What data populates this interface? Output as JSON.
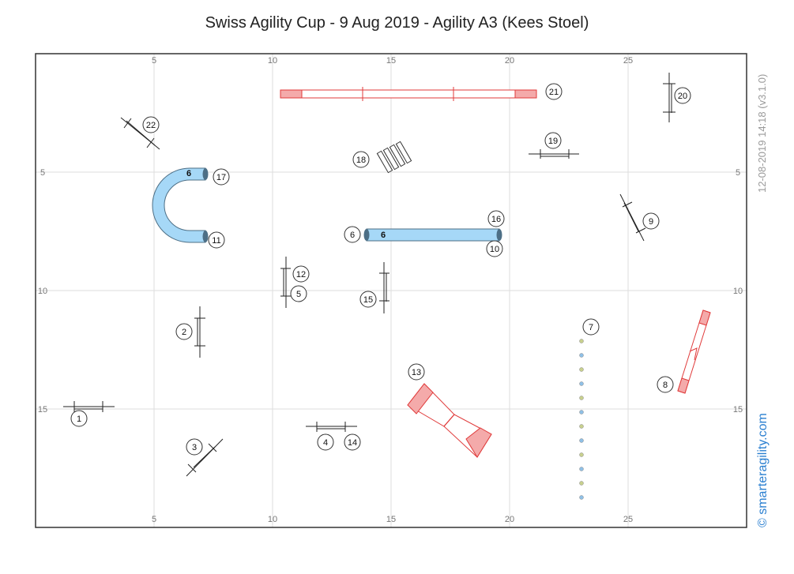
{
  "header": {
    "title": "Swiss Agility Cup - 9 Aug 2019 - Agility A3 (Kees Stoel)"
  },
  "side": {
    "timestamp": "12-08-2019 14:18  (v3.1.0)",
    "brand": "© smarteragility.com"
  },
  "colors": {
    "tunnel": "#a6d8f7",
    "tunnel_end": "#4d6f86",
    "contact": "#e03a3a",
    "contact_fill": "#f4aaaa",
    "grid": "#dddddd"
  },
  "course_map": {
    "field": {
      "x_range": [
        0,
        30
      ],
      "y_range": [
        0,
        20
      ]
    },
    "x_ticks": [
      "5",
      "10",
      "15",
      "20",
      "25"
    ],
    "y_ticks": [
      "5",
      "10",
      "15"
    ],
    "obstacles": [
      {
        "type": "jump",
        "numbers": [
          "1"
        ]
      },
      {
        "type": "jump",
        "numbers": [
          "2"
        ]
      },
      {
        "type": "jump",
        "numbers": [
          "3"
        ]
      },
      {
        "type": "jump",
        "numbers": [
          "4",
          "14"
        ]
      },
      {
        "type": "jump",
        "numbers": [
          "5",
          "12"
        ]
      },
      {
        "type": "tunnel",
        "numbers": [
          "6",
          "10",
          "16"
        ],
        "tunnel_label": "6"
      },
      {
        "type": "weave",
        "numbers": [
          "7"
        ]
      },
      {
        "type": "seesaw",
        "numbers": [
          "8"
        ]
      },
      {
        "type": "jump",
        "numbers": [
          "9"
        ]
      },
      {
        "type": "tunnel",
        "numbers": [
          "11",
          "17"
        ],
        "tunnel_label": "6"
      },
      {
        "type": "aframe",
        "numbers": [
          "13"
        ]
      },
      {
        "type": "jump",
        "numbers": [
          "15"
        ]
      },
      {
        "type": "tire",
        "numbers": [
          "18"
        ]
      },
      {
        "type": "jump",
        "numbers": [
          "19"
        ]
      },
      {
        "type": "jump",
        "numbers": [
          "20"
        ]
      },
      {
        "type": "dogwalk",
        "numbers": [
          "21"
        ]
      },
      {
        "type": "jump",
        "numbers": [
          "22"
        ]
      }
    ]
  }
}
